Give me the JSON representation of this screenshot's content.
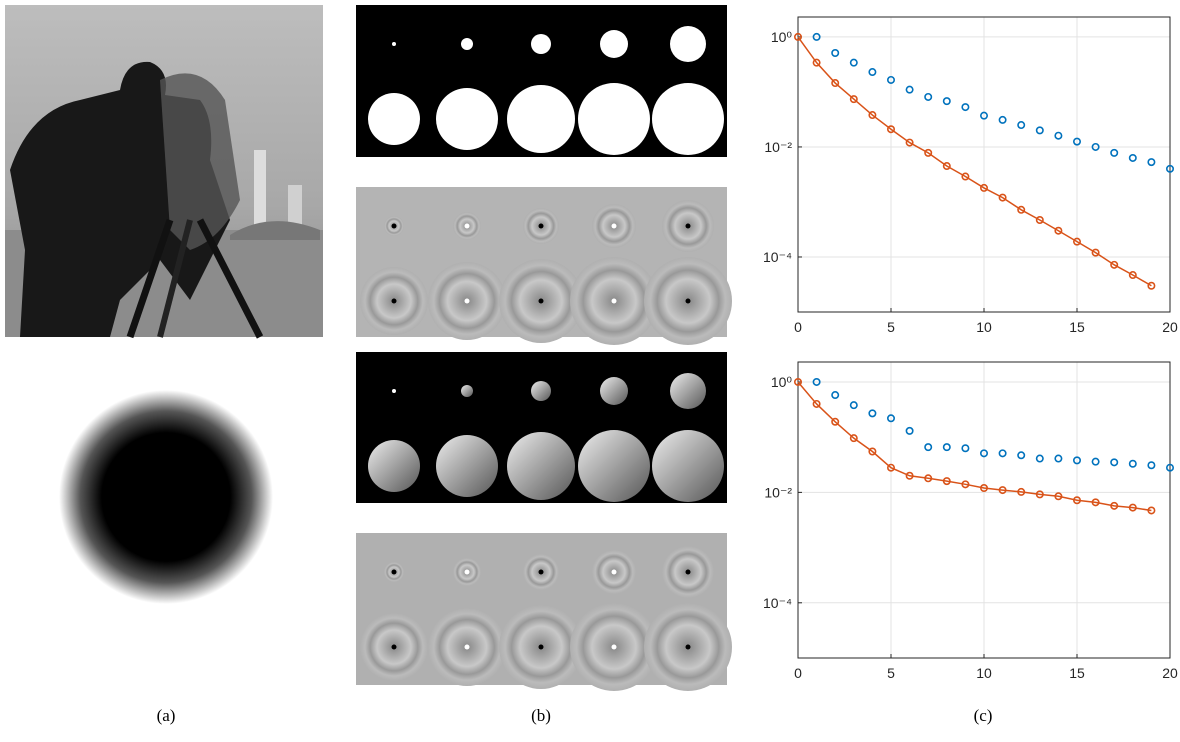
{
  "captions": [
    "(a)",
    "(b)",
    "(c)"
  ],
  "chart_data": [
    {
      "type": "line",
      "log_y": true,
      "grid": true,
      "xlim": [
        0,
        20
      ],
      "xticks": [
        0,
        5,
        10,
        15,
        20
      ],
      "ylim": [
        1e-05,
        2.3
      ],
      "yticks": [
        {
          "value": 1,
          "label": "10⁰"
        },
        {
          "value": 0.01,
          "label": "10⁻²"
        },
        {
          "value": 0.0001,
          "label": "10⁻⁴"
        }
      ],
      "series": [
        {
          "color": "#0072bd",
          "line": false,
          "x": [
            1,
            2,
            3,
            4,
            5,
            6,
            7,
            8,
            9,
            10,
            11,
            12,
            13,
            14,
            15,
            16,
            17,
            18,
            19,
            20
          ],
          "values": [
            1.0,
            0.51,
            0.34,
            0.23,
            0.165,
            0.11,
            0.081,
            0.068,
            0.053,
            0.037,
            0.031,
            0.025,
            0.02,
            0.016,
            0.0125,
            0.01,
            0.0078,
            0.0063,
            0.0053,
            0.004
          ]
        },
        {
          "color": "#d95319",
          "line": true,
          "x": [
            0,
            1,
            2,
            3,
            4,
            5,
            6,
            7,
            8,
            9,
            10,
            11,
            12,
            13,
            14,
            15,
            16,
            17,
            18,
            19
          ],
          "values": [
            1.0,
            0.34,
            0.145,
            0.074,
            0.038,
            0.021,
            0.012,
            0.0078,
            0.0045,
            0.0029,
            0.0018,
            0.0012,
            0.00072,
            0.00047,
            0.0003,
            0.00019,
            0.00012,
            7.2e-05,
            4.7e-05,
            3e-05
          ]
        }
      ]
    },
    {
      "type": "line",
      "log_y": true,
      "grid": true,
      "xlim": [
        0,
        20
      ],
      "xticks": [
        0,
        5,
        10,
        15,
        20
      ],
      "ylim": [
        1e-05,
        2.3
      ],
      "yticks": [
        {
          "value": 1,
          "label": "10⁰"
        },
        {
          "value": 0.01,
          "label": "10⁻²"
        },
        {
          "value": 0.0001,
          "label": "10⁻⁴"
        }
      ],
      "series": [
        {
          "color": "#0072bd",
          "line": false,
          "x": [
            1,
            2,
            3,
            4,
            5,
            6,
            7,
            8,
            9,
            10,
            11,
            12,
            13,
            14,
            15,
            16,
            17,
            18,
            19,
            20
          ],
          "values": [
            1.0,
            0.58,
            0.38,
            0.27,
            0.22,
            0.13,
            0.066,
            0.066,
            0.063,
            0.051,
            0.051,
            0.047,
            0.041,
            0.041,
            0.038,
            0.036,
            0.035,
            0.033,
            0.031,
            0.028
          ]
        },
        {
          "color": "#d95319",
          "line": true,
          "x": [
            0,
            1,
            2,
            3,
            4,
            5,
            6,
            7,
            8,
            9,
            10,
            11,
            12,
            13,
            14,
            15,
            16,
            17,
            18,
            19
          ],
          "values": [
            1.0,
            0.4,
            0.19,
            0.096,
            0.055,
            0.028,
            0.02,
            0.018,
            0.016,
            0.014,
            0.012,
            0.011,
            0.0102,
            0.0092,
            0.0085,
            0.0072,
            0.0066,
            0.0057,
            0.0053,
            0.0047
          ]
        }
      ]
    }
  ]
}
